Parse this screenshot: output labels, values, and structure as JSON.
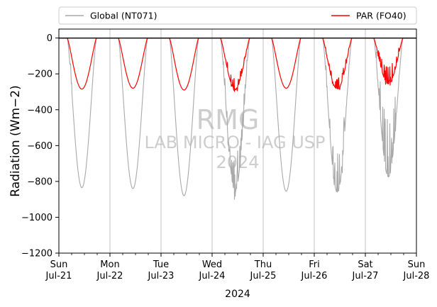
{
  "chart_data": {
    "type": "line",
    "title": "",
    "xlabel": "2024",
    "ylabel": "Radiation (Wm−2)",
    "ylim": [
      -1200,
      50
    ],
    "yticks": [
      0,
      -200,
      -400,
      -600,
      -800,
      -1000,
      -1200
    ],
    "ytick_labels": [
      "0",
      "−200",
      "−400",
      "−600",
      "−800",
      "−1000",
      "−1200"
    ],
    "x_range_days": [
      "Sun Jul-21",
      "Sun Jul-28"
    ],
    "xticks": [
      {
        "day": "Sun",
        "date": "Jul-21"
      },
      {
        "day": "Mon",
        "date": "Jul-22"
      },
      {
        "day": "Tue",
        "date": "Jul-23"
      },
      {
        "day": "Wed",
        "date": "Jul-24"
      },
      {
        "day": "Thu",
        "date": "Jul-25"
      },
      {
        "day": "Fri",
        "date": "Jul-26"
      },
      {
        "day": "Sat",
        "date": "Jul-27"
      },
      {
        "day": "Sun",
        "date": "Jul-28"
      }
    ],
    "grid": "vertical",
    "legend_placement": "top, above plot",
    "series": [
      {
        "name": "Global (NT071)",
        "color": "#a9a9a9",
        "daily_min": [
          {
            "date": "Jul-21",
            "value": -835
          },
          {
            "date": "Jul-22",
            "value": -840
          },
          {
            "date": "Jul-23",
            "value": -880
          },
          {
            "date": "Jul-24",
            "value": -855
          },
          {
            "date": "Jul-25",
            "value": -855
          },
          {
            "date": "Jul-26",
            "value": -860
          },
          {
            "date": "Jul-27",
            "value": -775
          }
        ]
      },
      {
        "name": "PAR (FO40)",
        "color": "#ff0000",
        "daily_min": [
          {
            "date": "Jul-21",
            "value": -285
          },
          {
            "date": "Jul-22",
            "value": -280
          },
          {
            "date": "Jul-23",
            "value": -290
          },
          {
            "date": "Jul-24",
            "value": -285
          },
          {
            "date": "Jul-25",
            "value": -280
          },
          {
            "date": "Jul-26",
            "value": -285
          },
          {
            "date": "Jul-27",
            "value": -255
          }
        ]
      }
    ],
    "watermark": [
      "RMG",
      "LAB MICRO - IAG USP",
      "2024"
    ]
  }
}
